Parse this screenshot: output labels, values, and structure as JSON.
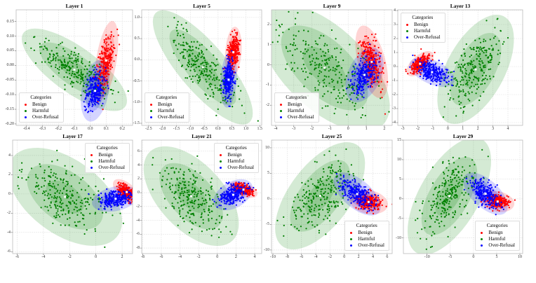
{
  "categories_title": "Categories",
  "series_names": [
    "Benign",
    "Harmful",
    "Over-Refusal"
  ],
  "colors": {
    "Benign": "#ff0000",
    "Harmful": "#008000",
    "Over-Refusal": "#0000ff"
  },
  "chart_data": [
    {
      "type": "scatter",
      "title": "Layer 1",
      "grid": true,
      "legend": "lower-left",
      "xlim": [
        -0.465,
        0.265
      ],
      "ylim": [
        -0.205,
        0.19
      ],
      "xticks": [
        -0.4,
        -0.3,
        -0.2,
        -0.1,
        0.0,
        0.1,
        0.2
      ],
      "xtick_labels": [
        "-0.4",
        "-0.3",
        "-0.2",
        "-0.1",
        "0.0",
        "0.1",
        "0.2"
      ],
      "yticks": [
        -0.2,
        -0.15,
        -0.1,
        -0.05,
        0,
        0.05,
        0.1,
        0.15
      ],
      "ytick_labels": [
        "-0.20",
        "-0.15",
        "-0.10",
        "-0.05",
        "0.00",
        "0.05",
        "0.10",
        "0.15"
      ],
      "series": [
        {
          "name": "Benign",
          "mean": [
            0.1,
            0.017
          ],
          "std": [
            0.025,
            0.045
          ],
          "corr": 0.5
        },
        {
          "name": "Harmful",
          "mean": [
            -0.1,
            -0.015
          ],
          "std": [
            0.11,
            0.047
          ],
          "corr": -0.75
        },
        {
          "name": "Over-Refusal",
          "mean": [
            0.03,
            -0.087
          ],
          "std": [
            0.03,
            0.035
          ],
          "corr": 0.3
        }
      ]
    },
    {
      "type": "scatter",
      "title": "Layer 5",
      "grid": true,
      "legend": "lower-left",
      "xlim": [
        -2.75,
        1.57
      ],
      "ylim": [
        -1.55,
        1.18
      ],
      "xticks": [
        -2.5,
        -2,
        -1.5,
        -1,
        -0.5,
        0,
        0.5,
        1,
        1.5
      ],
      "xtick_labels": [
        "-2.5",
        "-2.0",
        "-1.5",
        "-1.0",
        "-0.5",
        "0.0",
        "0.5",
        "1.0",
        "1.5"
      ],
      "yticks": [
        -1.5,
        -1,
        -0.5,
        0,
        0.5,
        1
      ],
      "ytick_labels": [
        "-1.5",
        "-1.0",
        "-0.5",
        "0.0",
        "0.5",
        "1.0"
      ],
      "series": [
        {
          "name": "Benign",
          "mean": [
            0.55,
            0.18
          ],
          "std": [
            0.1,
            0.2
          ],
          "corr": 0.2
        },
        {
          "name": "Harmful",
          "mean": [
            -0.55,
            -0.18
          ],
          "std": [
            0.6,
            0.45
          ],
          "corr": -0.8
        },
        {
          "name": "Over-Refusal",
          "mean": [
            0.38,
            -0.47
          ],
          "std": [
            0.1,
            0.22
          ],
          "corr": 0.2
        }
      ]
    },
    {
      "type": "scatter",
      "title": "Layer 9",
      "grid": true,
      "legend": "lower-left",
      "xlim": [
        -4.23,
        2.43
      ],
      "ylim": [
        -3.0,
        2.73
      ],
      "xticks": [
        -4,
        -3,
        -2,
        -1,
        0,
        1,
        2
      ],
      "xtick_labels": [
        "-4",
        "-3",
        "-2",
        "-1",
        "0",
        "1",
        "2"
      ],
      "yticks": [
        -2,
        -1,
        0,
        1,
        2
      ],
      "ytick_labels": [
        "-2",
        "-1",
        "0",
        "1",
        "2"
      ],
      "series": [
        {
          "name": "Benign",
          "mean": [
            1.3,
            0.15
          ],
          "std": [
            0.3,
            0.6
          ],
          "corr": -0.5
        },
        {
          "name": "Harmful",
          "mean": [
            -1.3,
            -0.15
          ],
          "std": [
            1.2,
            1.05
          ],
          "corr": -0.6
        },
        {
          "name": "Over-Refusal",
          "mean": [
            0.9,
            -0.5
          ],
          "std": [
            0.35,
            0.45
          ],
          "corr": 0.4
        }
      ]
    },
    {
      "type": "scatter",
      "title": "Layer 13",
      "grid": true,
      "legend": "upper-left",
      "xlim": [
        -3.33,
        4.98
      ],
      "ylim": [
        -4.2,
        4.05
      ],
      "xticks": [
        -3,
        -2,
        -1,
        0,
        1,
        2,
        3,
        4
      ],
      "xtick_labels": [
        "-3",
        "-2",
        "-1",
        "0",
        "1",
        "2",
        "3",
        "4"
      ],
      "yticks": [
        -4,
        -3,
        -2,
        -1,
        0,
        1,
        2,
        3,
        4
      ],
      "ytick_labels": [
        "-4",
        "-3",
        "-2",
        "-1",
        "0",
        "1",
        "2",
        "3",
        "4"
      ],
      "series": [
        {
          "name": "Benign",
          "mean": [
            -1.85,
            0.2
          ],
          "std": [
            0.3,
            0.3
          ],
          "corr": 0.6
        },
        {
          "name": "Harmful",
          "mean": [
            1.85,
            -0.2
          ],
          "std": [
            0.85,
            1.3
          ],
          "corr": 0.55
        },
        {
          "name": "Over-Refusal",
          "mean": [
            -1.05,
            -0.4
          ],
          "std": [
            0.5,
            0.35
          ],
          "corr": -0.5
        }
      ]
    },
    {
      "type": "scatter",
      "title": "Layer 17",
      "grid": true,
      "legend": "upper-right",
      "xlim": [
        -6.35,
        2.8
      ],
      "ylim": [
        -6.2,
        5.6
      ],
      "xticks": [
        -6,
        -4,
        -2,
        0,
        2
      ],
      "xtick_labels": [
        "-6",
        "-4",
        "-2",
        "0",
        "2"
      ],
      "yticks": [
        -6,
        -4,
        -2,
        0,
        2,
        4
      ],
      "ytick_labels": [
        "-6",
        "-4",
        "-2",
        "0",
        "2",
        "4"
      ],
      "series": [
        {
          "name": "Benign",
          "mean": [
            2.35,
            0.2
          ],
          "std": [
            0.35,
            0.45
          ],
          "corr": -0.6
        },
        {
          "name": "Harmful",
          "mean": [
            -2.35,
            -0.3
          ],
          "std": [
            1.45,
            1.7
          ],
          "corr": -0.5
        },
        {
          "name": "Over-Refusal",
          "mean": [
            1.5,
            -0.5
          ],
          "std": [
            0.6,
            0.45
          ],
          "corr": 0.3
        }
      ]
    },
    {
      "type": "scatter",
      "title": "Layer 21",
      "grid": true,
      "legend": "upper-right",
      "xlim": [
        -8.1,
        4.75
      ],
      "ylim": [
        -8.8,
        7.6
      ],
      "xticks": [
        -8,
        -6,
        -4,
        -2,
        0,
        2,
        4
      ],
      "xtick_labels": [
        "-8",
        "-6",
        "-4",
        "-2",
        "0",
        "2",
        "4"
      ],
      "yticks": [
        -8,
        -6,
        -4,
        -2,
        0,
        2,
        4,
        6
      ],
      "ytick_labels": [
        "-8",
        "-6",
        "-4",
        "-2",
        "0",
        "2",
        "4",
        "6"
      ],
      "series": [
        {
          "name": "Benign",
          "mean": [
            2.8,
            0.45
          ],
          "std": [
            0.5,
            0.4
          ],
          "corr": -0.5
        },
        {
          "name": "Harmful",
          "mean": [
            -2.8,
            -0.5
          ],
          "std": [
            1.7,
            2.4
          ],
          "corr": -0.55
        },
        {
          "name": "Over-Refusal",
          "mean": [
            1.7,
            -0.3
          ],
          "std": [
            0.7,
            0.75
          ],
          "corr": 0.4
        }
      ]
    },
    {
      "type": "scatter",
      "title": "Layer 25",
      "grid": true,
      "legend": "lower-right",
      "xlim": [
        -10.2,
        6.7
      ],
      "ylim": [
        -10.7,
        11.5
      ],
      "xticks": [
        -10,
        -8,
        -6,
        -4,
        -2,
        0,
        2,
        4,
        6
      ],
      "xtick_labels": [
        "-10",
        "-8",
        "-6",
        "-4",
        "-2",
        "0",
        "2",
        "4",
        "6"
      ],
      "yticks": [
        -10,
        -5,
        0,
        5,
        10
      ],
      "ytick_labels": [
        "-10",
        "-5",
        "0",
        "5",
        "10"
      ],
      "series": [
        {
          "name": "Benign",
          "mean": [
            3.4,
            -0.6
          ],
          "std": [
            0.9,
            0.8
          ],
          "corr": -0.2
        },
        {
          "name": "Harmful",
          "mean": [
            -3.4,
            0.6
          ],
          "std": [
            2.1,
            3.5
          ],
          "corr": 0.6
        },
        {
          "name": "Over-Refusal",
          "mean": [
            1.8,
            0.95
          ],
          "std": [
            1.1,
            1.4
          ],
          "corr": -0.6
        }
      ]
    },
    {
      "type": "scatter",
      "title": "Layer 29",
      "grid": true,
      "legend": "lower-right",
      "xlim": [
        -15.1,
        10.6
      ],
      "ylim": [
        -14,
        15
      ],
      "xticks": [
        -10,
        -5,
        0,
        5,
        10
      ],
      "xtick_labels": [
        "-10",
        "-5",
        "0",
        "5",
        "10"
      ],
      "yticks": [
        -10,
        -5,
        0,
        5,
        10,
        15
      ],
      "ytick_labels": [
        "-10",
        "-5",
        "0",
        "5",
        "10",
        "15"
      ],
      "series": [
        {
          "name": "Benign",
          "mean": [
            5.2,
            -0.7
          ],
          "std": [
            1.2,
            0.9
          ],
          "corr": -0.2
        },
        {
          "name": "Harmful",
          "mean": [
            -5.2,
            0.7
          ],
          "std": [
            3.0,
            5.0
          ],
          "corr": 0.6
        },
        {
          "name": "Over-Refusal",
          "mean": [
            2.6,
            1.3
          ],
          "std": [
            1.6,
            1.8
          ],
          "corr": -0.6
        }
      ]
    }
  ]
}
